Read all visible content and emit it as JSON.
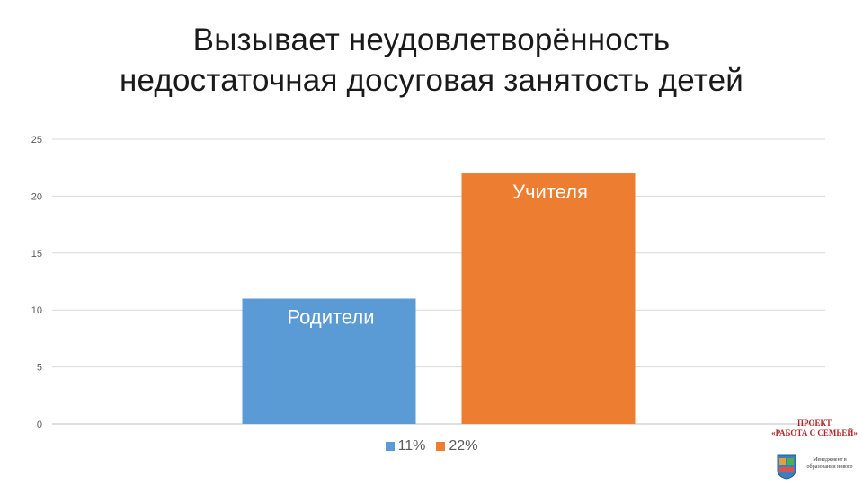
{
  "title_lines": [
    "Вызывает неудовлетворённость",
    "недостаточная досуговая занятость детей"
  ],
  "chart_data": {
    "type": "bar",
    "categories": [
      "Родители",
      "Учителя"
    ],
    "values": [
      11,
      22
    ],
    "bar_colors": [
      "#5b9bd5",
      "#ed7d31"
    ],
    "ylim": [
      0,
      25
    ],
    "yticks": [
      0,
      5,
      10,
      15,
      20,
      25
    ],
    "grid": true,
    "legend": {
      "placement": "bottom",
      "entries": [
        {
          "label": "11%",
          "color": "#5b9bd5"
        },
        {
          "label": "22%",
          "color": "#ed7d31"
        }
      ]
    }
  },
  "logo": {
    "line1": "ПРОЕКТ",
    "line2": "«РАБОТА С СЕМЬЕЙ»",
    "caption": "Менеджмент в образовании нового"
  }
}
